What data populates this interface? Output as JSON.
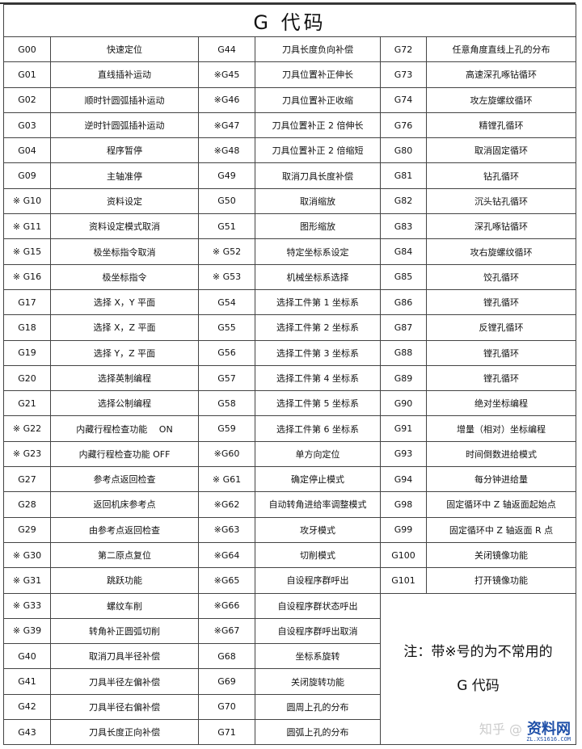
{
  "title": "G 代码",
  "rows": [
    [
      [
        "G00",
        "快速定位"
      ],
      [
        "G44",
        "刀具长度负向补偿"
      ],
      [
        "G72",
        "任意角度直线上孔的分布"
      ]
    ],
    [
      [
        "G01",
        "直线插补运动"
      ],
      [
        "※G45",
        "刀具位置补正伸长"
      ],
      [
        "G73",
        "高速深孔啄钻循环"
      ]
    ],
    [
      [
        "G02",
        "顺时针圆弧插补运动"
      ],
      [
        "※G46",
        "刀具位置补正收缩"
      ],
      [
        "G74",
        "攻左旋螺纹循环"
      ]
    ],
    [
      [
        "G03",
        "逆时针圆弧插补运动"
      ],
      [
        "※G47",
        "刀具位置补正 2 倍伸长"
      ],
      [
        "G76",
        "精镗孔循环"
      ]
    ],
    [
      [
        "G04",
        "程序暂停"
      ],
      [
        "※G48",
        "刀具位置补正 2 倍缩短"
      ],
      [
        "G80",
        "取消固定循环"
      ]
    ],
    [
      [
        "G09",
        "主轴准停"
      ],
      [
        "G49",
        "取消刀具长度补偿"
      ],
      [
        "G81",
        "钻孔循环"
      ]
    ],
    [
      [
        "※ G10",
        "资料设定"
      ],
      [
        "G50",
        "取消缩放"
      ],
      [
        "G82",
        "沉头钻孔循环"
      ]
    ],
    [
      [
        "※ G11",
        "资料设定模式取消"
      ],
      [
        "G51",
        "图形缩放"
      ],
      [
        "G83",
        "深孔啄钻循环"
      ]
    ],
    [
      [
        "※ G15",
        "极坐标指令取消"
      ],
      [
        "※ G52",
        "特定坐标系设定"
      ],
      [
        "G84",
        "攻右旋螺纹循环"
      ]
    ],
    [
      [
        "※ G16",
        "极坐标指令"
      ],
      [
        "※ G53",
        "机械坐标系选择"
      ],
      [
        "G85",
        "饺孔循环"
      ]
    ],
    [
      [
        "G17",
        "选择 X，Y 平面"
      ],
      [
        "G54",
        "选择工件第 1 坐标系"
      ],
      [
        "G86",
        "镗孔循环"
      ]
    ],
    [
      [
        "G18",
        "选择 X，Z 平面"
      ],
      [
        "G55",
        "选择工件第 2 坐标系"
      ],
      [
        "G87",
        "反镗孔循环"
      ]
    ],
    [
      [
        "G19",
        "选择 Y，Z 平面"
      ],
      [
        "G56",
        "选择工件第 3 坐标系"
      ],
      [
        "G88",
        "镗孔循环"
      ]
    ],
    [
      [
        "G20",
        "选择英制编程"
      ],
      [
        "G57",
        "选择工件第 4 坐标系"
      ],
      [
        "G89",
        "镗孔循环"
      ]
    ],
    [
      [
        "G21",
        "选择公制编程"
      ],
      [
        "G58",
        "选择工件第 5 坐标系"
      ],
      [
        "G90",
        "绝对坐标编程"
      ]
    ],
    [
      [
        "※ G22",
        "内藏行程检查功能　 ON"
      ],
      [
        "G59",
        "选择工件第 6 坐标系"
      ],
      [
        "G91",
        "增量（相对）坐标编程"
      ]
    ],
    [
      [
        "※ G23",
        "内藏行程检查功能 OFF"
      ],
      [
        "※G60",
        "单方向定位"
      ],
      [
        "G93",
        "时间倒数进给模式"
      ]
    ],
    [
      [
        "G27",
        "参考点返回检查"
      ],
      [
        "※ G61",
        "确定停止模式"
      ],
      [
        "G94",
        "每分钟进给量"
      ]
    ],
    [
      [
        "G28",
        "返回机床参考点"
      ],
      [
        "※G62",
        "自动转角进给率调整模式"
      ],
      [
        "G98",
        "固定循环中 Z 轴返面起始点"
      ]
    ],
    [
      [
        "G29",
        "由参考点返回检查"
      ],
      [
        "※G63",
        "攻牙模式"
      ],
      [
        "G99",
        "固定循环中 Z 轴返面 R 点"
      ]
    ],
    [
      [
        "※ G30",
        "第二原点复位"
      ],
      [
        "※G64",
        "切削模式"
      ],
      [
        "G100",
        "关闭镜像功能"
      ]
    ],
    [
      [
        "※ G31",
        "跳跃功能"
      ],
      [
        "※G65",
        "自设程序群呼出"
      ],
      [
        "G101",
        "打开镜像功能"
      ]
    ],
    [
      [
        "※ G33",
        "螺纹车削"
      ],
      [
        "※G66",
        "自设程序群状态呼出"
      ]
    ],
    [
      [
        "※ G39",
        "转角补正圆弧切削"
      ],
      [
        "※G67",
        "自设程序群呼出取消"
      ]
    ],
    [
      [
        "G40",
        "取消刀具半径补偿"
      ],
      [
        "G68",
        "坐标系旋转"
      ]
    ],
    [
      [
        "G41",
        "刀具半径左偏补偿"
      ],
      [
        "G69",
        "关闭旋转功能"
      ]
    ],
    [
      [
        "G42",
        "刀具半径右偏补偿"
      ],
      [
        "G70",
        "圆周上孔的分布"
      ]
    ],
    [
      [
        "G43",
        "刀具长度正向补偿"
      ],
      [
        "G71",
        "圆弧上孔的分布"
      ]
    ]
  ],
  "note": {
    "line1": "注：带※号的为不常用的",
    "line2": "G 代码"
  },
  "watermark": {
    "zhihu": "知乎 @",
    "logo": "资料网",
    "url": "ZL.XS1616.COM"
  }
}
